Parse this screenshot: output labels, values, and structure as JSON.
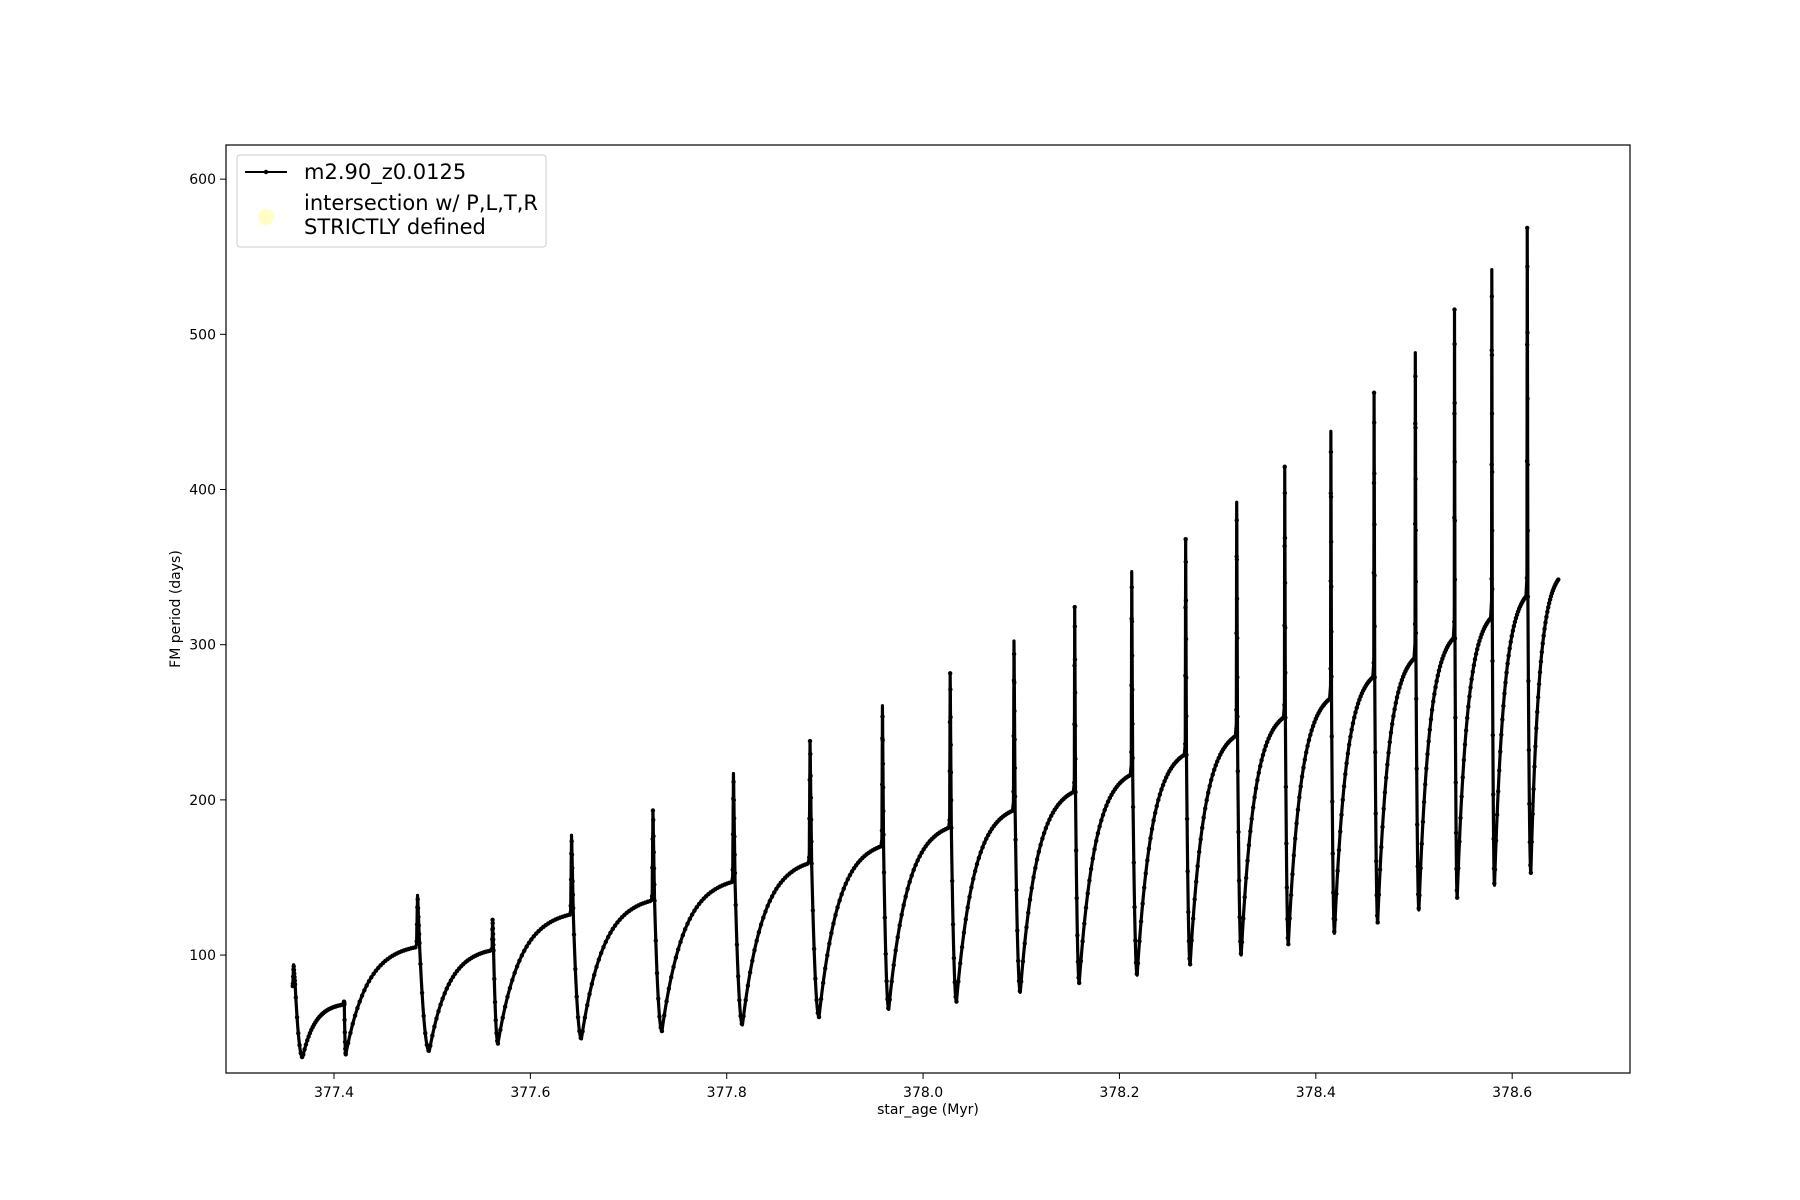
{
  "chart_data": {
    "type": "line",
    "title": "",
    "xlabel": "star_age (Myr)",
    "ylabel": "FM period (days)",
    "xlim": [
      377.29,
      378.72
    ],
    "ylim": [
      24,
      622
    ],
    "x_ticks": [
      377.4,
      377.6,
      377.8,
      378.0,
      378.2,
      378.4,
      378.6
    ],
    "x_tick_labels": [
      "377.4",
      "377.6",
      "377.8",
      "378.0",
      "378.2",
      "378.4",
      "378.6"
    ],
    "y_ticks": [
      100,
      200,
      300,
      400,
      500,
      600
    ],
    "y_tick_labels": [
      "100",
      "200",
      "300",
      "400",
      "500",
      "600"
    ],
    "grid": false,
    "legend": {
      "placement": "upper-left",
      "entries": [
        {
          "label": "m2.90_z0.0125",
          "marker": "line-with-dots",
          "color": "#000000"
        },
        {
          "label": "intersection w/ P,L,T,R\nSTRICTLY defined",
          "marker": "circle",
          "color": "#ffffaa"
        }
      ]
    },
    "series": [
      {
        "name": "m2.90_z0.0125",
        "color": "#000000",
        "start": [
          377.358,
          80
        ],
        "cycles": [
          {
            "spike_x": 377.358,
            "spike_max": 94,
            "trough_x": 377.368,
            "trough_y": 34,
            "end_x": 377.409,
            "end_y": 68
          },
          {
            "spike_x": 377.41,
            "spike_max": 70,
            "trough_x": 377.412,
            "trough_y": 36,
            "end_x": 377.483,
            "end_y": 105
          },
          {
            "spike_x": 377.484,
            "spike_max": 139,
            "trough_x": 377.497,
            "trough_y": 38,
            "end_x": 377.56,
            "end_y": 103
          },
          {
            "spike_x": 377.561,
            "spike_max": 123,
            "trough_x": 377.567,
            "trough_y": 43,
            "end_x": 377.64,
            "end_y": 126
          },
          {
            "spike_x": 377.641,
            "spike_max": 178,
            "trough_x": 377.652,
            "trough_y": 46,
            "end_x": 377.723,
            "end_y": 135
          },
          {
            "spike_x": 377.724,
            "spike_max": 194,
            "trough_x": 377.734,
            "trough_y": 51,
            "end_x": 377.805,
            "end_y": 147
          },
          {
            "spike_x": 377.806,
            "spike_max": 218,
            "trough_x": 377.816,
            "trough_y": 55,
            "end_x": 377.883,
            "end_y": 159
          },
          {
            "spike_x": 377.884,
            "spike_max": 239,
            "trough_x": 377.894,
            "trough_y": 60,
            "end_x": 377.957,
            "end_y": 170
          },
          {
            "spike_x": 377.958,
            "spike_max": 262,
            "trough_x": 377.965,
            "trough_y": 65,
            "end_x": 378.026,
            "end_y": 182
          },
          {
            "spike_x": 378.027,
            "spike_max": 283,
            "trough_x": 378.034,
            "trough_y": 70,
            "end_x": 378.091,
            "end_y": 193
          },
          {
            "spike_x": 378.092,
            "spike_max": 304,
            "trough_x": 378.099,
            "trough_y": 76,
            "end_x": 378.153,
            "end_y": 205
          },
          {
            "spike_x": 378.154,
            "spike_max": 326,
            "trough_x": 378.159,
            "trough_y": 82,
            "end_x": 378.211,
            "end_y": 216
          },
          {
            "spike_x": 378.212,
            "spike_max": 349,
            "trough_x": 378.218,
            "trough_y": 87,
            "end_x": 378.266,
            "end_y": 229
          },
          {
            "spike_x": 378.267,
            "spike_max": 370,
            "trough_x": 378.272,
            "trough_y": 94,
            "end_x": 378.318,
            "end_y": 241
          },
          {
            "spike_x": 378.319,
            "spike_max": 394,
            "trough_x": 378.324,
            "trough_y": 100,
            "end_x": 378.367,
            "end_y": 253
          },
          {
            "spike_x": 378.368,
            "spike_max": 417,
            "trough_x": 378.372,
            "trough_y": 107,
            "end_x": 378.414,
            "end_y": 265
          },
          {
            "spike_x": 378.415,
            "spike_max": 440,
            "trough_x": 378.419,
            "trough_y": 114,
            "end_x": 378.458,
            "end_y": 279
          },
          {
            "spike_x": 378.459,
            "spike_max": 465,
            "trough_x": 378.463,
            "trough_y": 121,
            "end_x": 378.5,
            "end_y": 291
          },
          {
            "spike_x": 378.501,
            "spike_max": 491,
            "trough_x": 378.505,
            "trough_y": 129,
            "end_x": 378.54,
            "end_y": 304
          },
          {
            "spike_x": 378.541,
            "spike_max": 519,
            "trough_x": 378.544,
            "trough_y": 137,
            "end_x": 378.578,
            "end_y": 317
          },
          {
            "spike_x": 378.579,
            "spike_max": 545,
            "trough_x": 378.582,
            "trough_y": 145,
            "end_x": 378.614,
            "end_y": 331
          },
          {
            "spike_x": 378.615,
            "spike_max": 572,
            "trough_x": 378.619,
            "trough_y": 153,
            "end_x": 378.647,
            "end_y": 342
          }
        ]
      }
    ]
  }
}
